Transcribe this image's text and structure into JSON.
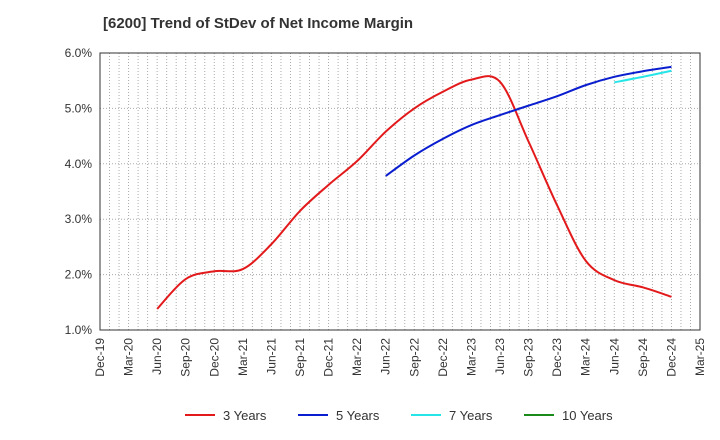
{
  "chart_data": {
    "type": "line",
    "title": "[6200]  Trend of StDev of Net Income Margin",
    "y_ticks": [
      "1.0%",
      "2.0%",
      "3.0%",
      "4.0%",
      "5.0%",
      "6.0%"
    ],
    "ylim": [
      1.0,
      6.0
    ],
    "x_categories": [
      "Dec-19",
      "Mar-20",
      "Jun-20",
      "Sep-20",
      "Dec-20",
      "Mar-21",
      "Jun-21",
      "Sep-21",
      "Dec-21",
      "Mar-22",
      "Jun-22",
      "Sep-22",
      "Dec-22",
      "Mar-23",
      "Jun-23",
      "Sep-23",
      "Dec-23",
      "Mar-24",
      "Jun-24",
      "Sep-24",
      "Dec-24",
      "Mar-25"
    ],
    "grid": true,
    "legend_position": "bottom",
    "series": [
      {
        "name": "3 Years",
        "color": "#e31a1c",
        "points": [
          [
            "Jun-20",
            1.38
          ],
          [
            "Sep-20",
            1.92
          ],
          [
            "Dec-20",
            2.06
          ],
          [
            "Mar-21",
            2.1
          ],
          [
            "Jun-21",
            2.55
          ],
          [
            "Sep-21",
            3.15
          ],
          [
            "Dec-21",
            3.62
          ],
          [
            "Mar-22",
            4.05
          ],
          [
            "Jun-22",
            4.58
          ],
          [
            "Sep-22",
            5.0
          ],
          [
            "Dec-22",
            5.3
          ],
          [
            "Mar-23",
            5.52
          ],
          [
            "Jun-23",
            5.48
          ],
          [
            "Sep-23",
            4.4
          ],
          [
            "Dec-23",
            3.25
          ],
          [
            "Mar-24",
            2.25
          ],
          [
            "Jun-24",
            1.9
          ],
          [
            "Sep-24",
            1.77
          ],
          [
            "Dec-24",
            1.6
          ]
        ]
      },
      {
        "name": "5 Years",
        "color": "#0a1ecf",
        "points": [
          [
            "Jun-22",
            3.78
          ],
          [
            "Sep-22",
            4.15
          ],
          [
            "Dec-22",
            4.45
          ],
          [
            "Mar-23",
            4.7
          ],
          [
            "Jun-23",
            4.88
          ],
          [
            "Sep-23",
            5.05
          ],
          [
            "Dec-23",
            5.22
          ],
          [
            "Mar-24",
            5.42
          ],
          [
            "Jun-24",
            5.57
          ],
          [
            "Sep-24",
            5.67
          ],
          [
            "Dec-24",
            5.75
          ]
        ]
      },
      {
        "name": "7 Years",
        "color": "#26e5e8",
        "points": [
          [
            "Jun-24",
            5.47
          ],
          [
            "Sep-24",
            5.57
          ],
          [
            "Dec-24",
            5.68
          ]
        ]
      },
      {
        "name": "10 Years",
        "color": "#1a8a1a",
        "points": []
      }
    ]
  }
}
